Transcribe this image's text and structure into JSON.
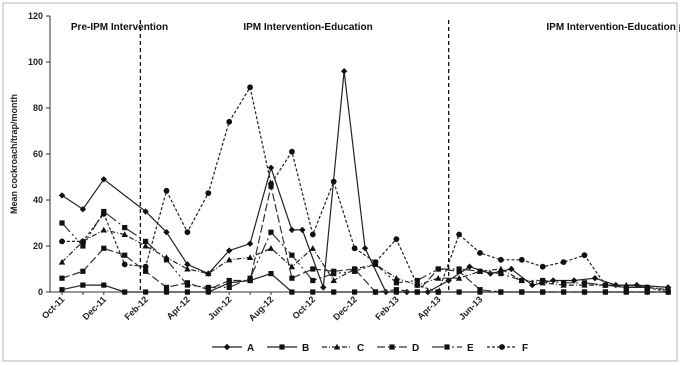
{
  "chart_data": {
    "type": "line",
    "title": "",
    "xlabel": "",
    "ylabel": "Mean cockroach/trap/month",
    "ylim": [
      0,
      120
    ],
    "yticks": [
      0,
      20,
      40,
      60,
      80,
      100,
      120
    ],
    "grid": false,
    "legend_position": "bottom",
    "x_index_max": 41,
    "xtick_labels": [
      {
        "label": "Oct-11",
        "x": 0
      },
      {
        "label": "Dec-11",
        "x": 4
      },
      {
        "label": "Feb-12",
        "x": 8
      },
      {
        "label": "Apr-12",
        "x": 12
      },
      {
        "label": "Jun-12",
        "x": 16
      },
      {
        "label": "Aug-12",
        "x": 20
      },
      {
        "label": "Oct-12",
        "x": 24
      },
      {
        "label": "Dec-12",
        "x": 28
      },
      {
        "label": "Feb-13",
        "x": 32
      },
      {
        "label": "Apr-13",
        "x": 36
      },
      {
        "label": "Jun-13",
        "x": 40
      }
    ],
    "phases": [
      {
        "label": "Pre-IPM Intervention",
        "label_x": 2
      },
      {
        "label": "IPM Intervention-Education",
        "label_x": 18.5,
        "boundary_x": 7.5
      },
      {
        "label": "IPM Intervention-Education plus Bait",
        "label_x": 47.5,
        "boundary_x": 37
      }
    ],
    "series": [
      {
        "name": "A",
        "marker": "diamond",
        "dash": "",
        "color": "#222222",
        "x": [
          0,
          2,
          4,
          8,
          10,
          12,
          14,
          16,
          18,
          20,
          22,
          23,
          25,
          27,
          29,
          31,
          33,
          35,
          37,
          39,
          41,
          43,
          45,
          47,
          49,
          51,
          53,
          55,
          58
        ],
        "y": [
          42,
          36,
          49,
          35,
          26,
          12,
          8,
          18,
          21,
          54,
          27,
          27,
          2,
          96,
          19,
          0,
          0,
          0,
          5,
          11,
          8,
          10,
          3,
          5,
          5,
          6,
          3,
          3,
          2
        ]
      },
      {
        "name": "B",
        "marker": "square",
        "dash": "",
        "color": "#222222",
        "x": [
          0,
          2,
          4,
          6,
          8,
          10,
          12,
          14,
          16,
          18,
          20,
          22,
          24,
          26,
          28,
          30,
          32,
          34,
          36,
          38,
          40,
          42,
          44,
          46,
          48,
          50,
          52,
          54,
          56,
          58
        ],
        "y": [
          1,
          3,
          3,
          0,
          0,
          0,
          0,
          0,
          4,
          5,
          8,
          0,
          0,
          0,
          0,
          0,
          0,
          0,
          0,
          0,
          0,
          0,
          0,
          0,
          0,
          0,
          0,
          0,
          0,
          0
        ]
      },
      {
        "name": "C",
        "marker": "triangle",
        "dash": "5,2,1,2",
        "color": "#222222",
        "x": [
          0,
          2,
          4,
          6,
          8,
          10,
          12,
          14,
          16,
          18,
          20,
          22,
          24,
          26,
          28,
          30,
          32,
          34,
          36,
          38,
          40,
          42,
          44,
          46,
          48,
          50,
          52,
          54,
          56,
          58
        ],
        "y": [
          13,
          22,
          27,
          25,
          20,
          15,
          10,
          8,
          14,
          15,
          19,
          11,
          19,
          5,
          10,
          12,
          6,
          3,
          6,
          6,
          9,
          10,
          5,
          4,
          3,
          3,
          3,
          3,
          2,
          1
        ]
      },
      {
        "name": "D",
        "marker": "square",
        "dash": "8,3",
        "color": "#333333",
        "x": [
          0,
          2,
          4,
          6,
          8,
          10,
          12,
          14,
          16,
          18,
          20,
          22,
          24,
          26,
          28,
          30,
          32,
          34,
          36,
          38,
          40,
          42,
          44,
          46,
          48,
          50,
          52,
          54,
          56,
          58
        ],
        "y": [
          6,
          9,
          19,
          16,
          9,
          2,
          4,
          1,
          5,
          5,
          46,
          6,
          10,
          9,
          10,
          0,
          1,
          0,
          10,
          9,
          1,
          0,
          0,
          0,
          0,
          0,
          0,
          0,
          0,
          0
        ]
      },
      {
        "name": "E",
        "marker": "square",
        "dash": "12,3,2,3,2,3",
        "color": "#333333",
        "x": [
          0,
          2,
          4,
          6,
          8,
          10,
          12,
          14,
          16,
          18,
          20,
          22,
          24,
          26,
          28,
          30,
          32,
          34,
          36,
          38,
          40,
          42,
          44,
          46,
          48,
          50,
          52,
          54,
          56,
          58
        ],
        "y": [
          30,
          20,
          35,
          28,
          22,
          14,
          3,
          2,
          2,
          6,
          26,
          16,
          5,
          8,
          9,
          12,
          4,
          5,
          10,
          10,
          9,
          8,
          5,
          5,
          4,
          4,
          3,
          2,
          2,
          1
        ]
      },
      {
        "name": "F",
        "marker": "circle",
        "dash": "3,2",
        "color": "#222222",
        "x": [
          0,
          2,
          4,
          6,
          8,
          10,
          12,
          14,
          16,
          18,
          20,
          22,
          24,
          26,
          28,
          30,
          32,
          34,
          36,
          38,
          40,
          42,
          44,
          46,
          48,
          50,
          52,
          54,
          56,
          58
        ],
        "y": [
          22,
          22,
          34,
          12,
          11,
          44,
          26,
          43,
          74,
          89,
          47,
          61,
          25,
          48,
          19,
          13,
          23,
          3,
          0,
          25,
          17,
          14,
          14,
          11,
          13,
          16,
          3,
          2,
          2,
          0
        ]
      }
    ]
  }
}
